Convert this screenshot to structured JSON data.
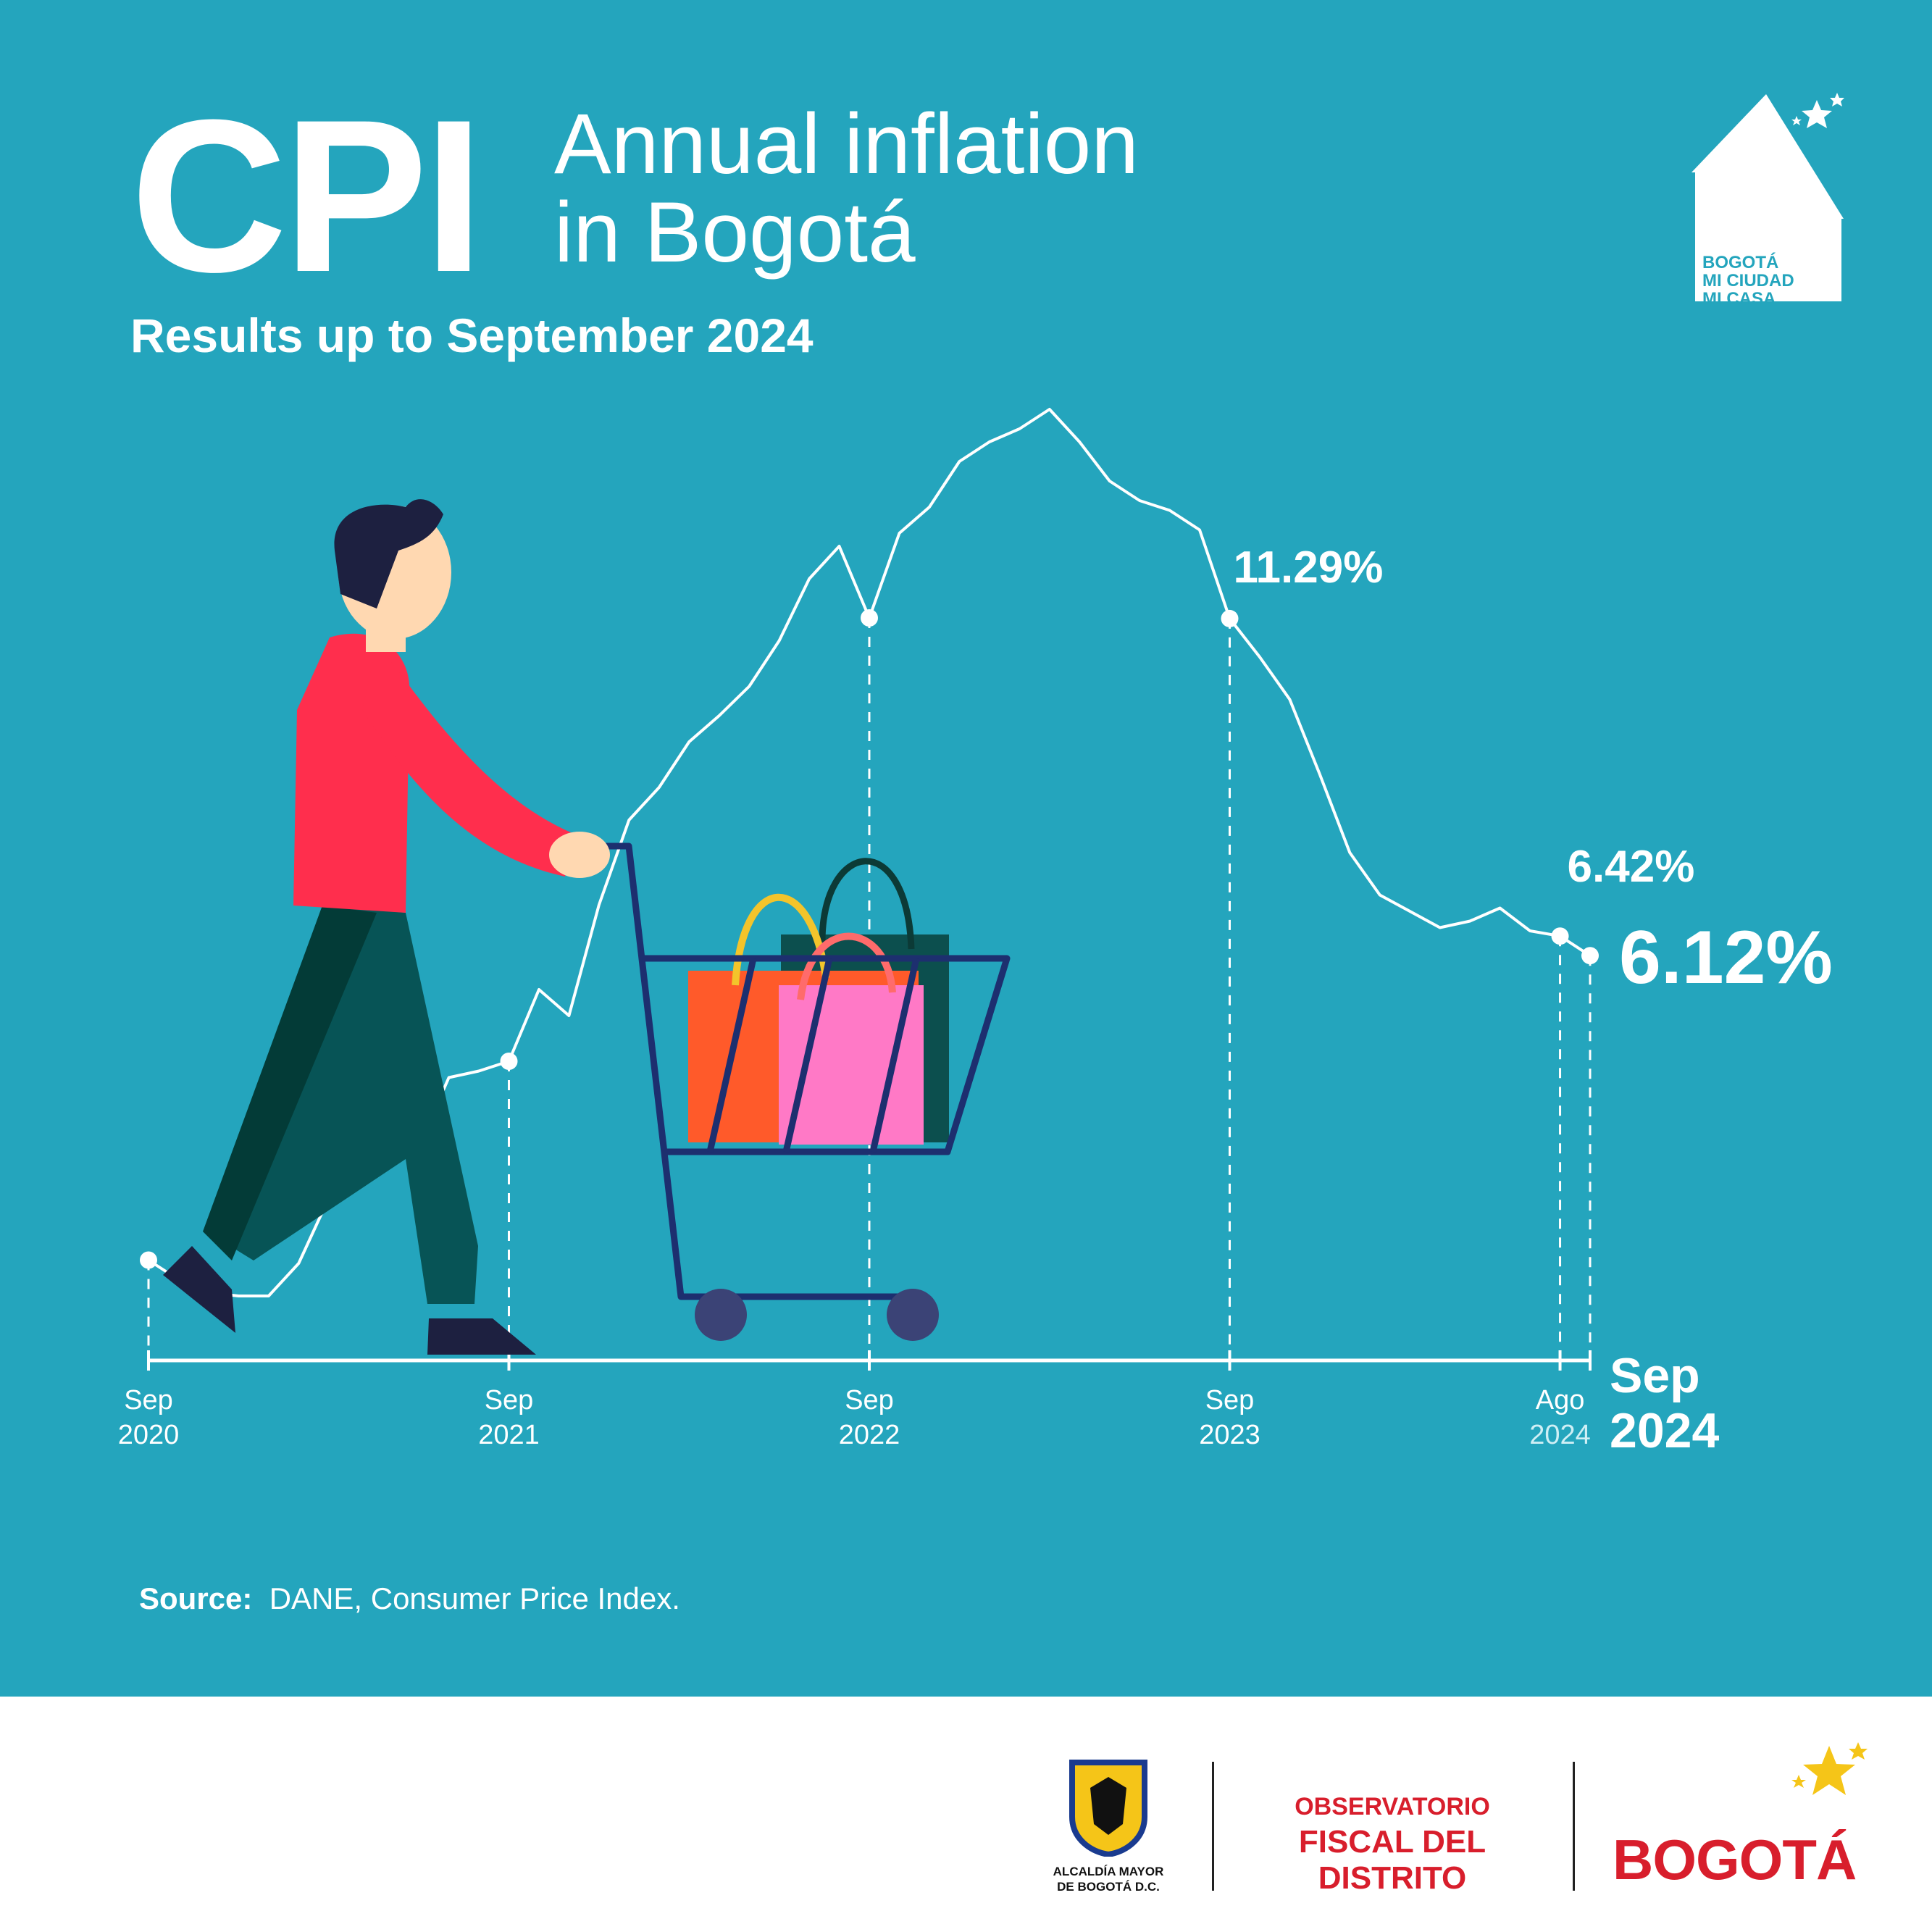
{
  "header": {
    "cpi": "CPI",
    "title_line1": "Annual inflation",
    "title_line2": "in Bogotá",
    "subtitle": "Results up to September 2024"
  },
  "source": {
    "label": "Source:",
    "text": "DANE, Consumer Price Index."
  },
  "house_logo": {
    "line1": "BOGOTÁ",
    "line2": "MI CIUDAD",
    "line3": "MI CASA"
  },
  "footer": {
    "alcaldia_line1": "ALCALDÍA MAYOR",
    "alcaldia_line2": "DE BOGOTÁ D.C.",
    "observatorio_line1": "OBSERVATORIO",
    "observatorio_line2": "FISCAL DEL DISTRITO",
    "bogota": "BOGOTÁ"
  },
  "colors": {
    "background": "#24a5bd",
    "line": "#ffffff",
    "brand_red": "#d81e2c"
  },
  "chart_data": {
    "type": "line",
    "title": "Annual inflation in Bogotá",
    "x_ticks": [
      {
        "line1": "Sep",
        "line2": "2020",
        "index": 0
      },
      {
        "line1": "Sep",
        "line2": "2021",
        "index": 12
      },
      {
        "line1": "Sep",
        "line2": "2022",
        "index": 24
      },
      {
        "line1": "Sep",
        "line2": "2023",
        "index": 36
      },
      {
        "line1": "Ago",
        "line2": "2024",
        "index": 47
      },
      {
        "line1": "Sep",
        "line2": "2024",
        "index": 48
      }
    ],
    "ylim": [
      0,
      14
    ],
    "series": [
      {
        "values": [
          1.45,
          1.15,
          0.95,
          0.9,
          0.9,
          1.4,
          2.4,
          3.1,
          3.7,
          3.2,
          4.25,
          4.35,
          4.5,
          5.6,
          5.2,
          6.9,
          8.2,
          8.7,
          9.4,
          9.8,
          10.25,
          10.95,
          11.9,
          12.4,
          11.3,
          12.6,
          13.0,
          13.7,
          14.0,
          14.2,
          14.5,
          14.0,
          13.4,
          13.1,
          12.95,
          12.65,
          11.29,
          10.7,
          10.05,
          8.9,
          7.7,
          7.05,
          6.8,
          6.55,
          6.65,
          6.85,
          6.5,
          6.42,
          6.12
        ],
        "marked": [
          0,
          12,
          24,
          36,
          47,
          48
        ]
      }
    ],
    "annotations": [
      {
        "index": 36,
        "text": "11.29%"
      },
      {
        "index": 47,
        "text": "6.42%"
      },
      {
        "index": 48,
        "text": "6.12%"
      }
    ]
  }
}
